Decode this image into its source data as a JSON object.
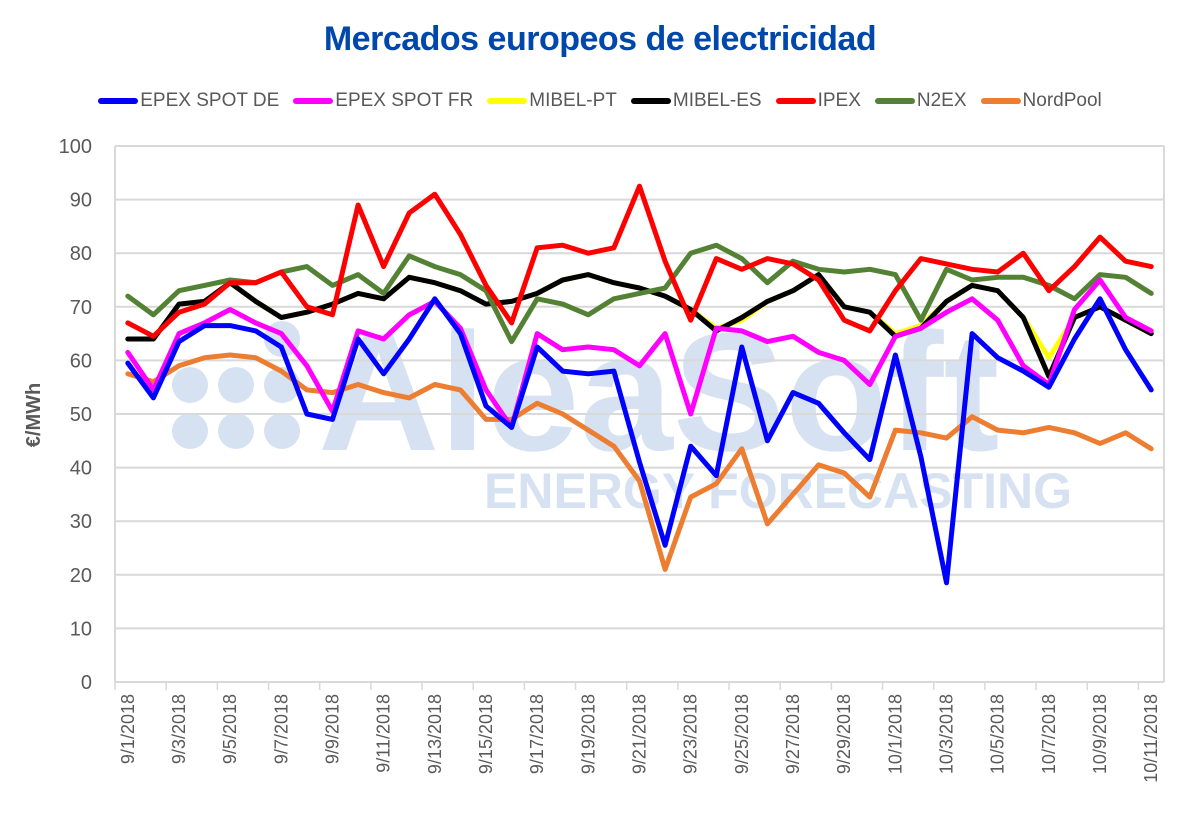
{
  "chart_data": {
    "type": "line",
    "title": "Mercados europeos de electricidad",
    "xlabel": "",
    "ylabel": "€/MWh",
    "ylim": [
      0,
      100
    ],
    "yticks": [
      0,
      10,
      20,
      30,
      40,
      50,
      60,
      70,
      80,
      90,
      100
    ],
    "grid": true,
    "legend_position": "top",
    "watermark": {
      "brand": "AleaSoft",
      "tagline": "ENERGY FORECASTING"
    },
    "x": [
      "9/1/2018",
      "9/2/2018",
      "9/3/2018",
      "9/4/2018",
      "9/5/2018",
      "9/6/2018",
      "9/7/2018",
      "9/8/2018",
      "9/9/2018",
      "9/10/2018",
      "9/11/2018",
      "9/12/2018",
      "9/13/2018",
      "9/14/2018",
      "9/15/2018",
      "9/16/2018",
      "9/17/2018",
      "9/18/2018",
      "9/19/2018",
      "9/20/2018",
      "9/21/2018",
      "9/22/2018",
      "9/23/2018",
      "9/24/2018",
      "9/25/2018",
      "9/26/2018",
      "9/27/2018",
      "9/28/2018",
      "9/29/2018",
      "9/30/2018",
      "10/1/2018",
      "10/2/2018",
      "10/3/2018",
      "10/4/2018",
      "10/5/2018",
      "10/6/2018",
      "10/7/2018",
      "10/8/2018",
      "10/9/2018",
      "10/10/2018",
      "10/11/2018"
    ],
    "x_tick_labels": [
      "9/1/2018",
      "9/3/2018",
      "9/5/2018",
      "9/7/2018",
      "9/9/2018",
      "9/11/2018",
      "9/13/2018",
      "9/15/2018",
      "9/17/2018",
      "9/19/2018",
      "9/21/2018",
      "9/23/2018",
      "9/25/2018",
      "9/27/2018",
      "9/29/2018",
      "10/1/2018",
      "10/3/2018",
      "10/5/2018",
      "10/7/2018",
      "10/9/2018",
      "10/11/2018"
    ],
    "series": [
      {
        "name": "EPEX SPOT DE",
        "color": "#0000ff",
        "values": [
          59.5,
          53,
          63.5,
          66.5,
          66.5,
          65.5,
          62.5,
          50,
          49,
          64,
          57.5,
          64,
          71.5,
          65,
          51.5,
          47.5,
          62.5,
          58,
          57.5,
          58,
          41,
          25.5,
          44,
          38.5,
          62.5,
          45,
          54,
          52,
          46.5,
          41.5,
          61,
          42,
          18.5,
          65,
          60.5,
          58,
          55,
          64,
          71.5,
          62,
          54.5
        ]
      },
      {
        "name": "EPEX SPOT FR",
        "color": "#ff00ff",
        "values": [
          61.5,
          54.5,
          65,
          67,
          69.5,
          67,
          65,
          59,
          50.5,
          65.5,
          64,
          68.5,
          71,
          66,
          54.5,
          47.5,
          65,
          62,
          62.5,
          62,
          59,
          65,
          50,
          66,
          65.5,
          63.5,
          64.5,
          61.5,
          60,
          55.5,
          64.5,
          66,
          69,
          71.5,
          67.5,
          59,
          55.5,
          69.5,
          75,
          68,
          65.5
        ]
      },
      {
        "name": "MIBEL-PT",
        "color": "#ffff00",
        "values": [
          64,
          64,
          70.5,
          71,
          74.5,
          71,
          68,
          69,
          70.5,
          72.5,
          71.5,
          75.5,
          74.5,
          73,
          70.5,
          71,
          72.5,
          75,
          76,
          74.5,
          73.5,
          72,
          69.5,
          66,
          67.5,
          71,
          73,
          76,
          70,
          69,
          65,
          66.5,
          71,
          74,
          73,
          68,
          60.5,
          68,
          70,
          67.5,
          65
        ]
      },
      {
        "name": "MIBEL-ES",
        "color": "#000000",
        "values": [
          64,
          64,
          70.5,
          71,
          74.5,
          71,
          68,
          69,
          70.5,
          72.5,
          71.5,
          75.5,
          74.5,
          73,
          70.5,
          71,
          72.5,
          75,
          76,
          74.5,
          73.5,
          72,
          69.5,
          65.5,
          68,
          71,
          73,
          76,
          70,
          69,
          64.5,
          66,
          71,
          74,
          73,
          68,
          57,
          68,
          70,
          67.5,
          65
        ]
      },
      {
        "name": "IPEX",
        "color": "#ff0000",
        "values": [
          67,
          64.5,
          69,
          70.5,
          74.5,
          74.5,
          76.5,
          70,
          68.5,
          89,
          77.5,
          87.5,
          91,
          83.5,
          74,
          67,
          81,
          81.5,
          80,
          81,
          92.5,
          78.5,
          67.5,
          79,
          77,
          79,
          78,
          75,
          67.5,
          65.5,
          73,
          79,
          78,
          77,
          76.5,
          80,
          73,
          77.5,
          83,
          78.5,
          77.5
        ]
      },
      {
        "name": "N2EX",
        "color": "#548235",
        "values": [
          72,
          68.5,
          73,
          74,
          75,
          74.5,
          76.5,
          77.5,
          74,
          76,
          72.5,
          79.5,
          77.5,
          76,
          73,
          63.5,
          71.5,
          70.5,
          68.5,
          71.5,
          72.5,
          73.5,
          80,
          81.5,
          79,
          74.5,
          78.5,
          77,
          76.5,
          77,
          76,
          67.5,
          77,
          75,
          75.5,
          75.5,
          74,
          71.5,
          76,
          75.5,
          72.5
        ]
      },
      {
        "name": "NordPool",
        "color": "#ed7d31",
        "values": [
          57.5,
          56,
          59,
          60.5,
          61,
          60.5,
          58,
          54.5,
          54,
          55.5,
          54,
          53,
          55.5,
          54.5,
          49,
          49,
          52,
          50,
          47,
          44,
          37.5,
          21,
          34.5,
          37,
          43.5,
          29.5,
          35,
          40.5,
          39,
          34.5,
          47,
          46.5,
          45.5,
          49.5,
          47,
          46.5,
          47.5,
          46.5,
          44.5,
          46.5,
          43.5
        ]
      }
    ]
  }
}
